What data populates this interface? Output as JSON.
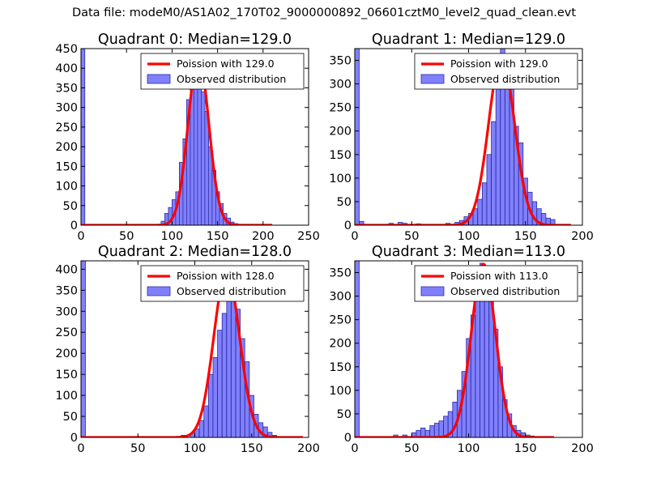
{
  "suptitle": "Data file: modeM0/AS1A02_170T02_9000000892_06601cztM0_level2_quad_clean.evt",
  "colors": {
    "hist_fill": "#8080ff",
    "hist_edge": "#2c2ca0",
    "poisson_line": "#ff0000"
  },
  "chart_data": [
    {
      "type": "bar",
      "title": "Quadrant 0: Median=129.0",
      "median": 129.0,
      "xlim": [
        0,
        250
      ],
      "ylim": [
        0,
        450
      ],
      "xticks": [
        0,
        50,
        100,
        150,
        200,
        250
      ],
      "yticks": [
        0,
        50,
        100,
        150,
        200,
        250,
        300,
        350,
        400,
        450
      ],
      "xlabel": "",
      "ylabel": "",
      "legend": {
        "placement": "top-right",
        "poisson_label": "Poission with 129.0",
        "hist_label": "Observed distribution"
      },
      "bin_width": 4.2,
      "bins": [
        [
          0,
          450
        ],
        [
          88,
          10
        ],
        [
          92,
          30
        ],
        [
          96,
          45
        ],
        [
          100,
          65
        ],
        [
          104,
          85
        ],
        [
          108,
          160
        ],
        [
          112,
          220
        ],
        [
          116,
          320
        ],
        [
          120,
          350
        ],
        [
          124,
          410
        ],
        [
          128,
          400
        ],
        [
          132,
          340
        ],
        [
          136,
          290
        ],
        [
          140,
          200
        ],
        [
          144,
          140
        ],
        [
          148,
          85
        ],
        [
          152,
          55
        ],
        [
          156,
          30
        ],
        [
          160,
          18
        ],
        [
          164,
          8
        ],
        [
          168,
          4
        ]
      ],
      "curve": {
        "mu": 129,
        "peak": 430,
        "x0": 0,
        "x1": 210
      }
    },
    {
      "type": "bar",
      "title": "Quadrant 1: Median=129.0",
      "median": 129.0,
      "xlim": [
        0,
        200
      ],
      "ylim": [
        0,
        375
      ],
      "xticks": [
        0,
        50,
        100,
        150,
        200
      ],
      "yticks": [
        0,
        50,
        100,
        150,
        200,
        250,
        300,
        350
      ],
      "xlabel": "",
      "ylabel": "",
      "legend": {
        "placement": "top-right",
        "poisson_label": "Poission with 129.0",
        "hist_label": "Observed distribution"
      },
      "bin_width": 3.9,
      "bins": [
        [
          0,
          375
        ],
        [
          4,
          8
        ],
        [
          30,
          4
        ],
        [
          38,
          6
        ],
        [
          42,
          4
        ],
        [
          54,
          3
        ],
        [
          80,
          4
        ],
        [
          88,
          6
        ],
        [
          92,
          10
        ],
        [
          96,
          18
        ],
        [
          100,
          25
        ],
        [
          104,
          35
        ],
        [
          108,
          55
        ],
        [
          112,
          90
        ],
        [
          116,
          150
        ],
        [
          120,
          220
        ],
        [
          124,
          310
        ],
        [
          128,
          375
        ],
        [
          132,
          320
        ],
        [
          136,
          290
        ],
        [
          140,
          210
        ],
        [
          144,
          175
        ],
        [
          148,
          100
        ],
        [
          152,
          70
        ],
        [
          156,
          50
        ],
        [
          160,
          35
        ],
        [
          164,
          25
        ],
        [
          168,
          15
        ],
        [
          172,
          12
        ]
      ],
      "curve": {
        "mu": 129,
        "peak": 358,
        "x0": 0,
        "x1": 190
      }
    },
    {
      "type": "bar",
      "title": "Quadrant 2: Median=128.0",
      "median": 128.0,
      "xlim": [
        0,
        200
      ],
      "ylim": [
        0,
        420
      ],
      "xticks": [
        0,
        50,
        100,
        150,
        200
      ],
      "yticks": [
        0,
        50,
        100,
        150,
        200,
        250,
        300,
        350,
        400
      ],
      "xlabel": "",
      "ylabel": "",
      "legend": {
        "placement": "top-right",
        "poisson_label": "Poission with 128.0",
        "hist_label": "Observed distribution"
      },
      "bin_width": 3.9,
      "bins": [
        [
          0,
          420
        ],
        [
          88,
          5
        ],
        [
          96,
          10
        ],
        [
          100,
          20
        ],
        [
          104,
          40
        ],
        [
          108,
          75
        ],
        [
          112,
          150
        ],
        [
          116,
          190
        ],
        [
          120,
          255
        ],
        [
          124,
          295
        ],
        [
          128,
          400
        ],
        [
          132,
          350
        ],
        [
          136,
          305
        ],
        [
          140,
          235
        ],
        [
          144,
          180
        ],
        [
          148,
          100
        ],
        [
          152,
          55
        ],
        [
          156,
          35
        ],
        [
          160,
          25
        ],
        [
          164,
          12
        ],
        [
          168,
          5
        ]
      ],
      "curve": {
        "mu": 128,
        "peak": 396,
        "x0": 0,
        "x1": 195
      }
    },
    {
      "type": "bar",
      "title": "Quadrant 3: Median=113.0",
      "median": 113.0,
      "xlim": [
        0,
        200
      ],
      "ylim": [
        0,
        375
      ],
      "xticks": [
        0,
        50,
        100,
        150,
        200
      ],
      "yticks": [
        0,
        50,
        100,
        150,
        200,
        250,
        300,
        350
      ],
      "xlabel": "",
      "ylabel": "",
      "legend": {
        "placement": "top-right",
        "poisson_label": "Poission with 113.0",
        "hist_label": "Observed distribution"
      },
      "bin_width": 3.9,
      "bins": [
        [
          0,
          375
        ],
        [
          34,
          5
        ],
        [
          42,
          5
        ],
        [
          50,
          10
        ],
        [
          54,
          15
        ],
        [
          58,
          20
        ],
        [
          62,
          15
        ],
        [
          66,
          25
        ],
        [
          70,
          30
        ],
        [
          74,
          35
        ],
        [
          78,
          45
        ],
        [
          82,
          55
        ],
        [
          86,
          75
        ],
        [
          90,
          100
        ],
        [
          94,
          140
        ],
        [
          98,
          210
        ],
        [
          102,
          260
        ],
        [
          106,
          310
        ],
        [
          110,
          370
        ],
        [
          114,
          320
        ],
        [
          118,
          290
        ],
        [
          122,
          230
        ],
        [
          126,
          150
        ],
        [
          130,
          80
        ],
        [
          134,
          50
        ],
        [
          138,
          25
        ],
        [
          142,
          15
        ],
        [
          146,
          10
        ],
        [
          150,
          5
        ],
        [
          154,
          3
        ]
      ],
      "curve": {
        "mu": 113,
        "peak": 368,
        "x0": 0,
        "x1": 175
      }
    }
  ]
}
